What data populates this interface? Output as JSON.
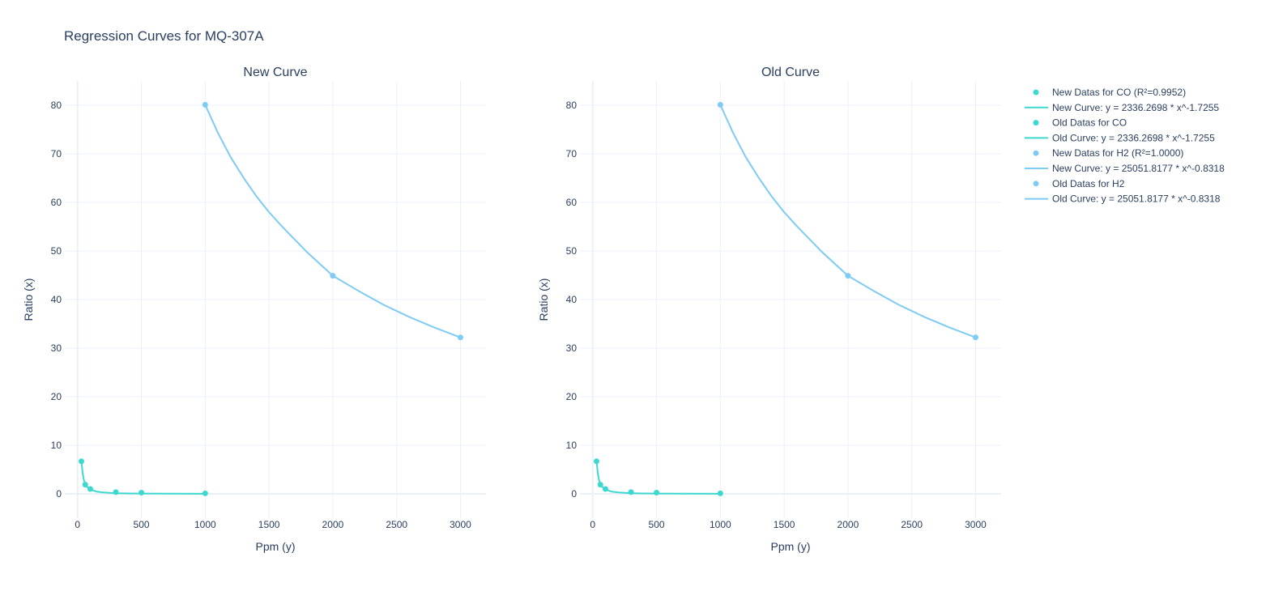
{
  "title": "Regression Curves for MQ-307A",
  "colors": {
    "co": "#3dd9d0",
    "h2": "#7ecbf5",
    "text": "#2a3f5f",
    "grid": "#ebf0f8"
  },
  "legend": {
    "placement": "top-right",
    "entries": [
      {
        "label": "New Datas for CO (R²=0.9952)",
        "kind": "marker",
        "color": "#3dd9d0"
      },
      {
        "label": "New Curve: y = 2336.2698 * x^-1.7255",
        "kind": "line",
        "color": "#3dd9d0"
      },
      {
        "label": "Old Datas for CO",
        "kind": "marker",
        "color": "#3dd9d0"
      },
      {
        "label": "Old Curve: y = 2336.2698 * x^-1.7255",
        "kind": "line",
        "color": "#3dd9d0"
      },
      {
        "label": "New Datas for H2 (R²=1.0000)",
        "kind": "marker",
        "color": "#7ecbf5"
      },
      {
        "label": "New Curve: y = 25051.8177 * x^-0.8318",
        "kind": "line",
        "color": "#7ecbf5"
      },
      {
        "label": "Old Datas for H2",
        "kind": "marker",
        "color": "#7ecbf5"
      },
      {
        "label": "Old Curve: y = 25051.8177 * x^-0.8318",
        "kind": "line",
        "color": "#7ecbf5"
      }
    ]
  },
  "chart_data": [
    {
      "type": "scatter",
      "title": "New Curve",
      "xlabel": "Ppm (y)",
      "ylabel": "Ratio (x)",
      "xlim": [
        -100,
        3200
      ],
      "ylim": [
        -5,
        85
      ],
      "xticks": [
        0,
        500,
        1000,
        1500,
        2000,
        2500,
        3000
      ],
      "yticks": [
        0,
        10,
        20,
        30,
        40,
        50,
        60,
        70,
        80
      ],
      "grid": true,
      "series": [
        {
          "name": "New Datas for CO (R²=0.9952)",
          "mode": "markers",
          "color": "#3dd9d0",
          "x": [
            30,
            60,
            100,
            300,
            500,
            1000
          ],
          "y": [
            6.7,
            1.9,
            1.0,
            0.35,
            0.25,
            0.1
          ]
        },
        {
          "name": "New Curve: y = 2336.2698 * x^-1.7255",
          "mode": "line",
          "color": "#3dd9d0",
          "x": [
            30,
            40,
            50,
            60,
            80,
            100,
            150,
            200,
            300,
            400,
            500,
            700,
            1000
          ],
          "y": [
            6.7,
            4.2,
            2.8,
            2.0,
            1.3,
            0.9,
            0.45,
            0.28,
            0.14,
            0.09,
            0.06,
            0.04,
            0.02
          ]
        },
        {
          "name": "New Datas for H2 (R²=1.0000)",
          "mode": "markers",
          "color": "#7ecbf5",
          "x": [
            1000,
            2000,
            3000
          ],
          "y": [
            80.1,
            44.9,
            32.2
          ]
        },
        {
          "name": "New Curve: y = 25051.8177 * x^-0.8318",
          "mode": "line",
          "color": "#7ecbf5",
          "x": [
            1000,
            1100,
            1200,
            1300,
            1400,
            1500,
            1600,
            1800,
            2000,
            2200,
            2400,
            2600,
            2800,
            3000
          ],
          "y": [
            80.1,
            74.3,
            69.3,
            65.1,
            61.3,
            58.0,
            55.1,
            49.7,
            44.9,
            41.8,
            38.9,
            36.4,
            34.2,
            32.2
          ]
        }
      ]
    },
    {
      "type": "scatter",
      "title": "Old Curve",
      "xlabel": "Ppm (y)",
      "ylabel": "Ratio (x)",
      "xlim": [
        -100,
        3200
      ],
      "ylim": [
        -5,
        85
      ],
      "xticks": [
        0,
        500,
        1000,
        1500,
        2000,
        2500,
        3000
      ],
      "yticks": [
        0,
        10,
        20,
        30,
        40,
        50,
        60,
        70,
        80
      ],
      "grid": true,
      "series": [
        {
          "name": "Old Datas for CO",
          "mode": "markers",
          "color": "#3dd9d0",
          "x": [
            30,
            60,
            100,
            300,
            500,
            1000
          ],
          "y": [
            6.7,
            1.9,
            1.0,
            0.35,
            0.25,
            0.1
          ]
        },
        {
          "name": "Old Curve: y = 2336.2698 * x^-1.7255",
          "mode": "line",
          "color": "#3dd9d0",
          "x": [
            30,
            40,
            50,
            60,
            80,
            100,
            150,
            200,
            300,
            400,
            500,
            700,
            1000
          ],
          "y": [
            6.7,
            4.2,
            2.8,
            2.0,
            1.3,
            0.9,
            0.45,
            0.28,
            0.14,
            0.09,
            0.06,
            0.04,
            0.02
          ]
        },
        {
          "name": "Old Datas for H2",
          "mode": "markers",
          "color": "#7ecbf5",
          "x": [
            1000,
            2000,
            3000
          ],
          "y": [
            80.1,
            44.9,
            32.2
          ]
        },
        {
          "name": "Old Curve: y = 25051.8177 * x^-0.8318",
          "mode": "line",
          "color": "#7ecbf5",
          "x": [
            1000,
            1100,
            1200,
            1300,
            1400,
            1500,
            1600,
            1800,
            2000,
            2200,
            2400,
            2600,
            2800,
            3000
          ],
          "y": [
            80.1,
            74.3,
            69.3,
            65.1,
            61.3,
            58.0,
            55.1,
            49.7,
            44.9,
            41.8,
            38.9,
            36.4,
            34.2,
            32.2
          ]
        }
      ]
    }
  ]
}
